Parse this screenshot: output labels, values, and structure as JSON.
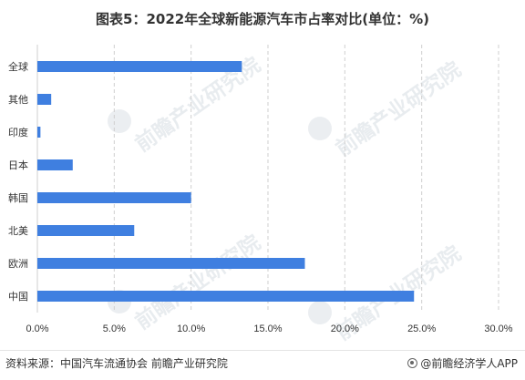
{
  "title": "图表5：2022年全球新能源汽车市占率对比(单位：%)",
  "watermark_text": "前瞻产业研究院",
  "footer": {
    "source": "资料来源：中国汽车流通协会 前瞻产业研究院",
    "brand": "@前瞻经济学人APP"
  },
  "colors": {
    "bar": "#3f7fe0",
    "grid": "#cfcfcf",
    "text": "#333333"
  },
  "chart_data": {
    "type": "bar",
    "orientation": "horizontal",
    "categories": [
      "全球",
      "其他",
      "印度",
      "日本",
      "韩国",
      "北美",
      "欧洲",
      "中国"
    ],
    "values": [
      13.3,
      0.9,
      0.2,
      2.3,
      10.0,
      6.3,
      17.4,
      24.5
    ],
    "xlim": [
      0,
      30
    ],
    "xticks": [
      "0.0%",
      "5.0%",
      "10.0%",
      "15.0%",
      "20.0%",
      "25.0%",
      "30.0%"
    ],
    "grid": "vertical dashed"
  }
}
